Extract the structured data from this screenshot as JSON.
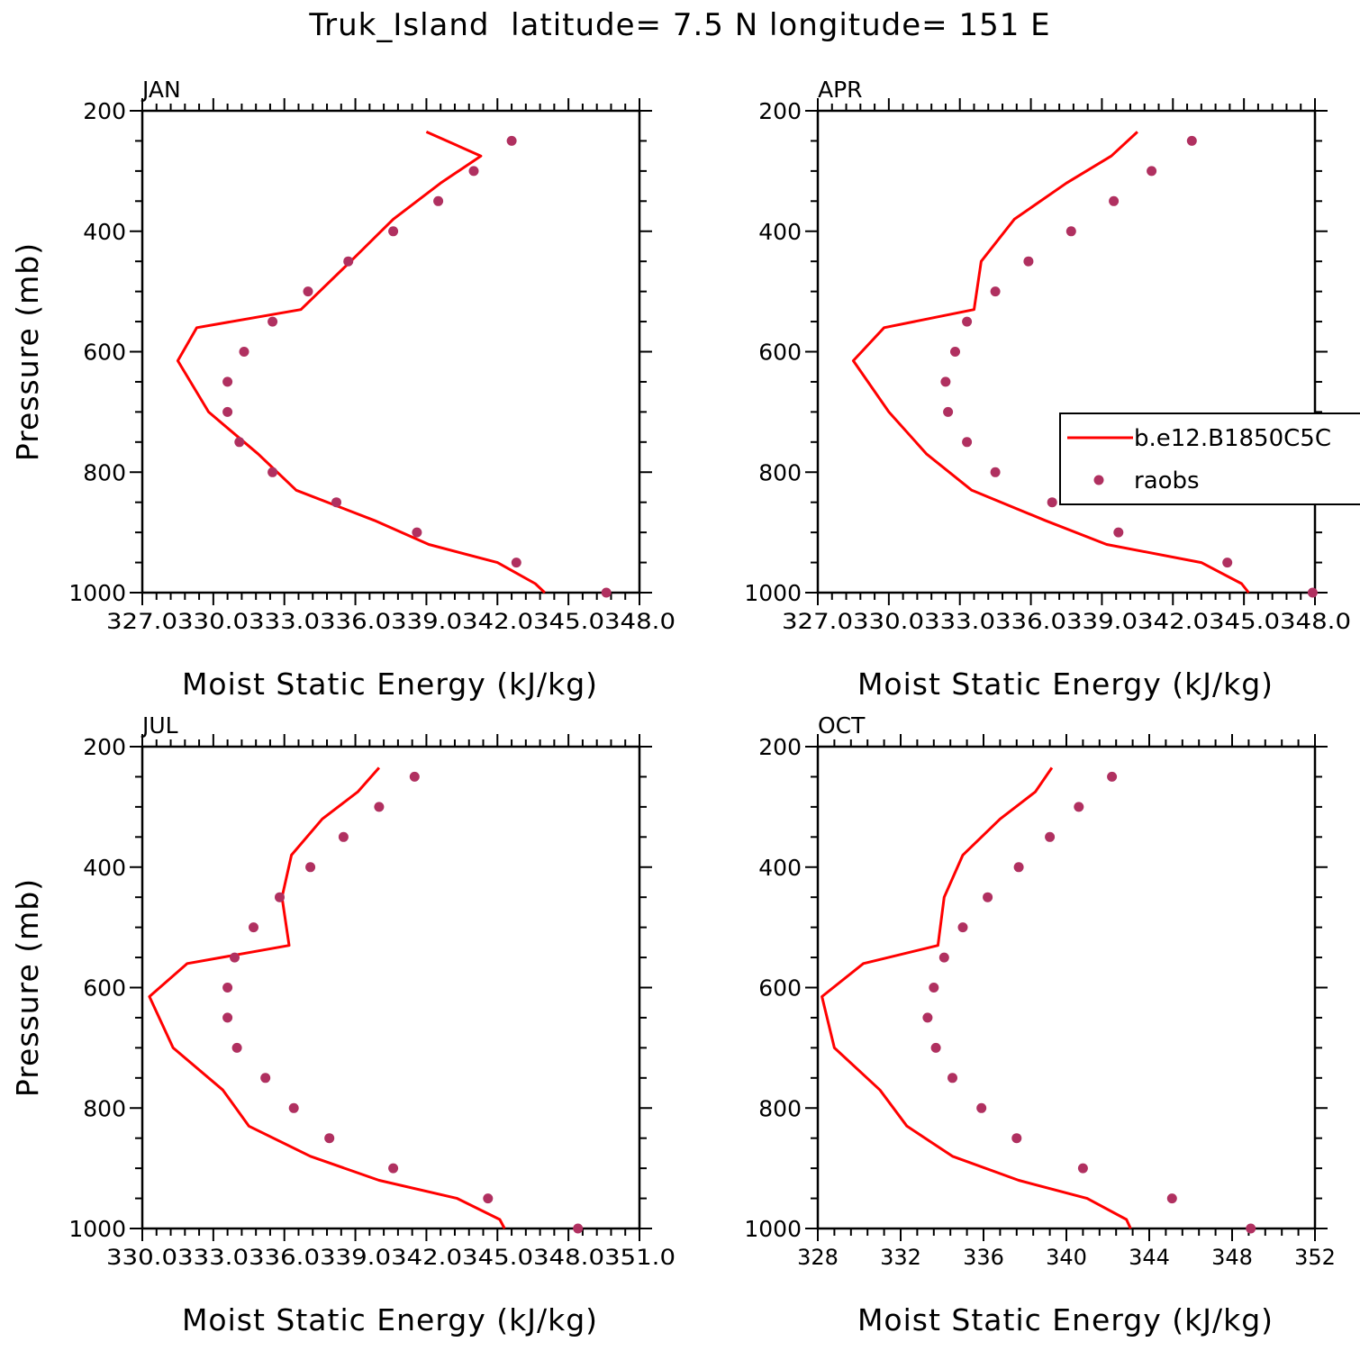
{
  "title": "Truk_Island  latitude= 7.5 N longitude= 151 E",
  "colors": {
    "model": "#ff0000",
    "obs": "#b03060",
    "axis": "#000000"
  },
  "chart_data": [
    {
      "type": "line",
      "panel": "JAN",
      "xlabel": "Moist Static Energy (kJ/kg)",
      "ylabel": "Pressure (mb)",
      "xlim": [
        327,
        348
      ],
      "ylim": [
        1000,
        200
      ],
      "xticks": [
        "327.0",
        "330.0",
        "333.0",
        "336.0",
        "339.0",
        "342.0",
        "345.0",
        "348.0"
      ],
      "yticks": [
        "200",
        "400",
        "600",
        "800",
        "1000"
      ],
      "series": [
        {
          "name": "b.e12.B1850C5C",
          "kind": "line",
          "x": [
            344.0,
            343.6,
            342.0,
            339.1,
            336.8,
            333.5,
            331.9,
            329.8,
            328.5,
            329.3,
            333.7,
            335.8,
            337.6,
            339.6,
            341.3,
            339.0
          ],
          "y": [
            1000,
            985,
            950,
            920,
            880,
            830,
            770,
            700,
            615,
            560,
            530,
            450,
            380,
            320,
            275,
            235
          ]
        },
        {
          "name": "raobs",
          "kind": "points",
          "x": [
            346.6,
            342.8,
            338.6,
            335.2,
            332.5,
            331.1,
            330.6,
            330.6,
            331.3,
            332.5,
            334.0,
            335.7,
            337.6,
            339.5,
            341.0,
            342.6
          ],
          "y": [
            1000,
            950,
            900,
            850,
            800,
            750,
            700,
            650,
            600,
            550,
            500,
            450,
            400,
            350,
            300,
            250
          ]
        }
      ]
    },
    {
      "type": "line",
      "panel": "APR",
      "xlabel": "Moist Static Energy (kJ/kg)",
      "ylabel": "",
      "xlim": [
        327,
        348
      ],
      "ylim": [
        1000,
        200
      ],
      "xticks": [
        "327.0",
        "330.0",
        "333.0",
        "336.0",
        "339.0",
        "342.0",
        "345.0",
        "348.0"
      ],
      "yticks": [
        "200",
        "400",
        "600",
        "800",
        "1000"
      ],
      "legend": {
        "position": "right",
        "entries": [
          "b.e12.B1850C5C",
          "raobs"
        ]
      },
      "series": [
        {
          "name": "b.e12.B1850C5C",
          "kind": "line",
          "x": [
            345.2,
            344.9,
            343.2,
            339.2,
            336.6,
            333.5,
            331.6,
            330.0,
            328.5,
            329.8,
            333.6,
            333.9,
            335.3,
            337.5,
            339.4,
            340.5
          ],
          "y": [
            1000,
            985,
            950,
            920,
            880,
            830,
            770,
            700,
            615,
            560,
            530,
            450,
            380,
            320,
            275,
            235
          ]
        },
        {
          "name": "raobs",
          "kind": "points",
          "x": [
            347.9,
            344.3,
            339.7,
            336.9,
            334.5,
            333.3,
            332.5,
            332.4,
            332.8,
            333.3,
            334.5,
            335.9,
            337.7,
            339.5,
            341.1,
            342.8
          ],
          "y": [
            1000,
            950,
            900,
            850,
            800,
            750,
            700,
            650,
            600,
            550,
            500,
            450,
            400,
            350,
            300,
            250
          ]
        }
      ]
    },
    {
      "type": "line",
      "panel": "JUL",
      "xlabel": "Moist Static Energy (kJ/kg)",
      "ylabel": "Pressure (mb)",
      "xlim": [
        330,
        351
      ],
      "ylim": [
        1000,
        200
      ],
      "xticks": [
        "330.0",
        "333.0",
        "336.0",
        "339.0",
        "342.0",
        "345.0",
        "348.0",
        "351.0"
      ],
      "yticks": [
        "200",
        "400",
        "600",
        "800",
        "1000"
      ],
      "series": [
        {
          "name": "b.e12.B1850C5C",
          "kind": "line",
          "x": [
            345.3,
            345.1,
            343.3,
            340.0,
            337.1,
            334.5,
            333.4,
            331.3,
            330.3,
            331.9,
            336.2,
            335.9,
            336.3,
            337.6,
            339.1,
            340.0
          ],
          "y": [
            1000,
            985,
            950,
            920,
            880,
            830,
            770,
            700,
            615,
            560,
            530,
            450,
            380,
            320,
            275,
            235
          ]
        },
        {
          "name": "raobs",
          "kind": "points",
          "x": [
            348.4,
            344.6,
            340.6,
            337.9,
            336.4,
            335.2,
            334.0,
            333.6,
            333.6,
            333.9,
            334.7,
            335.8,
            337.1,
            338.5,
            340.0,
            341.5
          ],
          "y": [
            1000,
            950,
            900,
            850,
            800,
            750,
            700,
            650,
            600,
            550,
            500,
            450,
            400,
            350,
            300,
            250
          ]
        }
      ]
    },
    {
      "type": "line",
      "panel": "OCT",
      "xlabel": "Moist Static Energy (kJ/kg)",
      "ylabel": "",
      "xlim": [
        328,
        352
      ],
      "ylim": [
        1000,
        200
      ],
      "xticks": [
        "328",
        "332",
        "336",
        "340",
        "344",
        "348",
        "352"
      ],
      "yticks": [
        "200",
        "400",
        "600",
        "800",
        "1000"
      ],
      "series": [
        {
          "name": "b.e12.B1850C5C",
          "kind": "line",
          "x": [
            343.1,
            342.9,
            341.0,
            337.7,
            334.5,
            332.3,
            331.0,
            328.8,
            328.2,
            330.2,
            333.8,
            334.1,
            335.0,
            336.8,
            338.5,
            339.3
          ],
          "y": [
            1000,
            985,
            950,
            920,
            880,
            830,
            770,
            700,
            615,
            560,
            530,
            450,
            380,
            320,
            275,
            235
          ]
        },
        {
          "name": "raobs",
          "kind": "points",
          "x": [
            348.9,
            345.1,
            340.8,
            337.6,
            335.9,
            334.5,
            333.7,
            333.3,
            333.6,
            334.1,
            335.0,
            336.2,
            337.7,
            339.2,
            340.6,
            342.2
          ],
          "y": [
            1000,
            950,
            900,
            850,
            800,
            750,
            700,
            650,
            600,
            550,
            500,
            450,
            400,
            350,
            300,
            250
          ]
        }
      ]
    }
  ]
}
